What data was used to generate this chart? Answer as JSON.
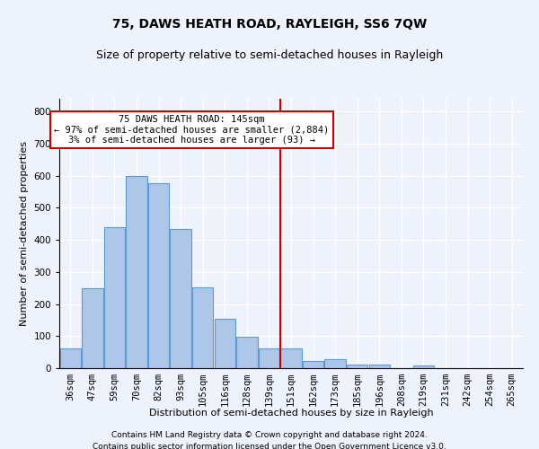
{
  "title": "75, DAWS HEATH ROAD, RAYLEIGH, SS6 7QW",
  "subtitle": "Size of property relative to semi-detached houses in Rayleigh",
  "xlabel": "Distribution of semi-detached houses by size in Rayleigh",
  "ylabel": "Number of semi-detached properties",
  "footer1": "Contains HM Land Registry data © Crown copyright and database right 2024.",
  "footer2": "Contains public sector information licensed under the Open Government Licence v3.0.",
  "categories": [
    "36sqm",
    "47sqm",
    "59sqm",
    "70sqm",
    "82sqm",
    "93sqm",
    "105sqm",
    "116sqm",
    "128sqm",
    "139sqm",
    "151sqm",
    "162sqm",
    "173sqm",
    "185sqm",
    "196sqm",
    "208sqm",
    "219sqm",
    "231sqm",
    "242sqm",
    "254sqm",
    "265sqm"
  ],
  "values": [
    62,
    248,
    440,
    600,
    578,
    435,
    252,
    155,
    98,
    62,
    62,
    22,
    28,
    10,
    10,
    0,
    8,
    0,
    0,
    0,
    0
  ],
  "bar_color": "#aec6e8",
  "bar_edge_color": "#5b9bd5",
  "annotation_line1": "75 DAWS HEATH ROAD: 145sqm",
  "annotation_line2": "← 97% of semi-detached houses are smaller (2,884)",
  "annotation_line3": "3% of semi-detached houses are larger (93) →",
  "annotation_box_facecolor": "#ffffff",
  "annotation_box_edgecolor": "#cc0000",
  "vline_color": "#cc0000",
  "vline_pos": 10.5,
  "ylim": [
    0,
    840
  ],
  "yticks": [
    0,
    100,
    200,
    300,
    400,
    500,
    600,
    700,
    800
  ],
  "bg_color": "#eef2fa",
  "grid_color": "#ffffff",
  "title_fontsize": 10,
  "subtitle_fontsize": 9,
  "axis_fontsize": 8,
  "tick_fontsize": 7.5,
  "footer_fontsize": 6.5
}
